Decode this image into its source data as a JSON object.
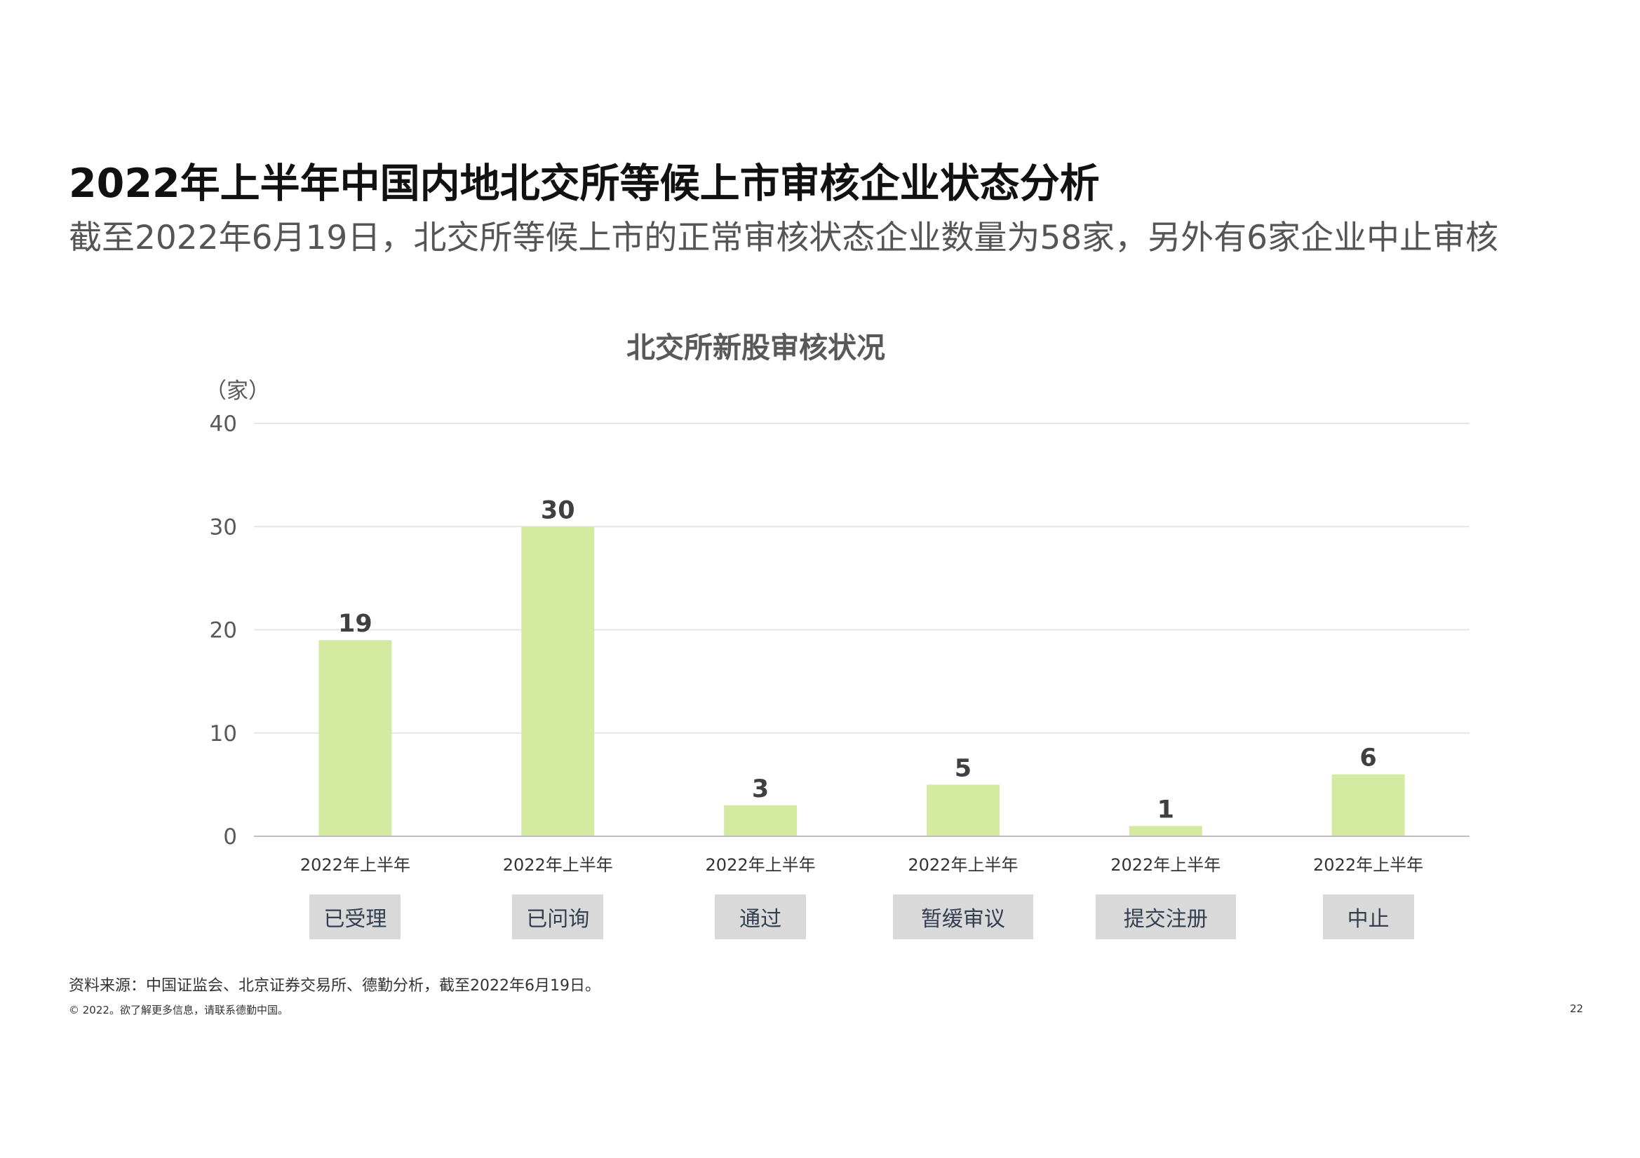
{
  "page": {
    "title": "2022年上半年中国内地北交所等候上市审核企业状态分析",
    "subtitle": "截至2022年6月19日，北交所等候上市的正常审核状态企业数量为58家，另外有6家企业中止审核",
    "source": "资料来源：中国证监会、北京证券交易所、德勤分析，截至2022年6月19日。",
    "copyright": "© 2022。欲了解更多信息，请联系德勤中国。",
    "page_number": "22"
  },
  "chart_data": {
    "type": "bar",
    "title": "北交所新股审核状况",
    "ylabel": "（家）",
    "ylim": [
      0,
      40
    ],
    "yticks": [
      0,
      10,
      20,
      30,
      40
    ],
    "grid": true,
    "period_label": "2022年上半年",
    "categories": [
      "已受理",
      "已问询",
      "通过",
      "暂缓审议",
      "提交注册",
      "中止"
    ],
    "values": [
      19,
      30,
      3,
      5,
      1,
      6
    ],
    "colors": {
      "bar": "#d4eaa0",
      "grid": "#e6e6e6",
      "axis": "#bfbfbf",
      "category_box": "#d9d9d9"
    }
  }
}
